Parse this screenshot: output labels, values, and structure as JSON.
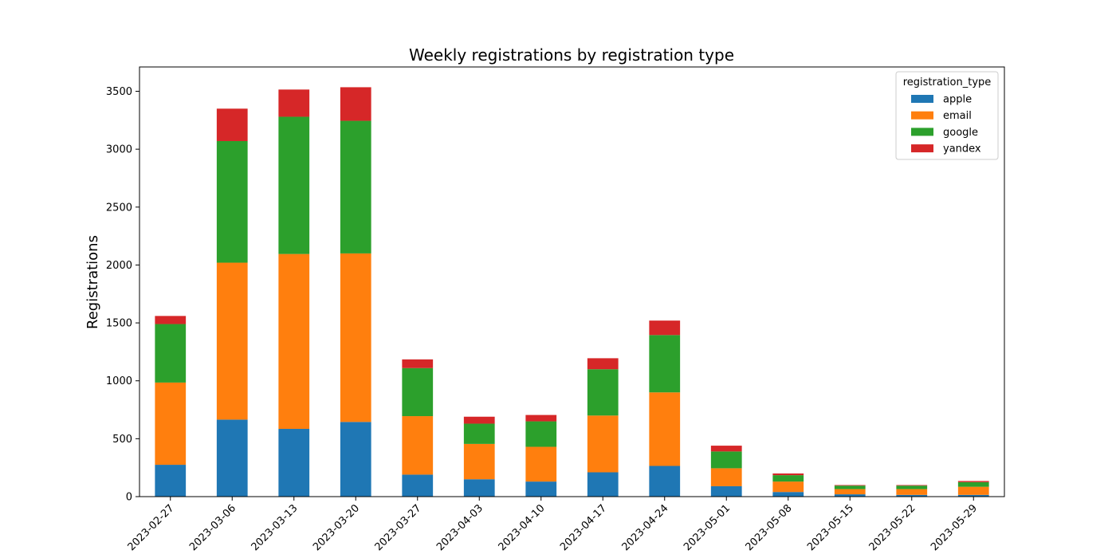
{
  "chart_data": {
    "type": "bar",
    "stacked": true,
    "title": "Weekly registrations by registration type",
    "xlabel": "",
    "ylabel": "Registrations",
    "ylim": [
      0,
      3710
    ],
    "yticks": [
      0,
      500,
      1000,
      1500,
      2000,
      2500,
      3000,
      3500
    ],
    "grid": false,
    "legend": {
      "title": "registration_type",
      "position": "top-right"
    },
    "categories": [
      "2023-02-27",
      "2023-03-06",
      "2023-03-13",
      "2023-03-20",
      "2023-03-27",
      "2023-04-03",
      "2023-04-10",
      "2023-04-17",
      "2023-04-24",
      "2023-05-01",
      "2023-05-08",
      "2023-05-15",
      "2023-05-22",
      "2023-05-29"
    ],
    "series": [
      {
        "name": "apple",
        "color": "#1f77b4",
        "values": [
          275,
          665,
          585,
          645,
          190,
          150,
          130,
          210,
          265,
          90,
          40,
          20,
          15,
          15
        ]
      },
      {
        "name": "email",
        "color": "#ff7f0e",
        "values": [
          710,
          1355,
          1510,
          1455,
          505,
          305,
          300,
          490,
          635,
          155,
          90,
          45,
          50,
          70
        ]
      },
      {
        "name": "google",
        "color": "#2ca02c",
        "values": [
          505,
          1050,
          1185,
          1145,
          415,
          175,
          220,
          400,
          495,
          145,
          55,
          30,
          30,
          40
        ]
      },
      {
        "name": "yandex",
        "color": "#d62728",
        "values": [
          70,
          280,
          235,
          290,
          75,
          60,
          55,
          95,
          125,
          50,
          15,
          5,
          5,
          10
        ]
      }
    ]
  }
}
